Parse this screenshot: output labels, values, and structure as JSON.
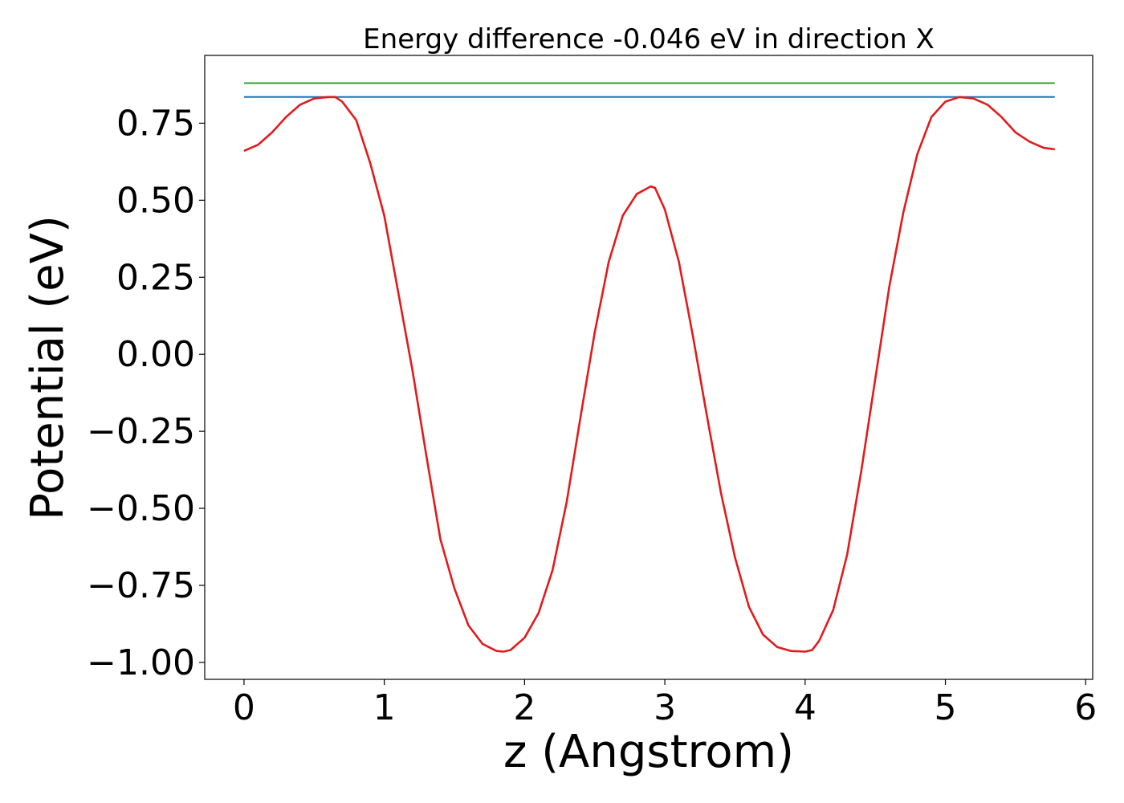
{
  "chart_data": {
    "type": "line",
    "title": "Energy difference -0.046 eV in direction X",
    "xlabel": "z (Angstrom)",
    "ylabel": "Potential (eV)",
    "xlim": [
      -0.28,
      6.05
    ],
    "ylim": [
      -1.055,
      0.97
    ],
    "grid": false,
    "xticks": [
      0,
      1,
      2,
      3,
      4,
      5,
      6
    ],
    "xtick_labels": [
      "0",
      "1",
      "2",
      "3",
      "4",
      "5",
      "6"
    ],
    "yticks": [
      0.75,
      0.5,
      0.25,
      0.0,
      -0.25,
      -0.5,
      -0.75,
      -1.0
    ],
    "ytick_labels": [
      "0.75",
      "0.50",
      "0.25",
      "0.00",
      "−0.25",
      "−0.50",
      "−0.75",
      "−1.00"
    ],
    "series": [
      {
        "color": "#2ca02c",
        "x": [
          0.0,
          5.78
        ],
        "y": [
          0.88,
          0.88
        ]
      },
      {
        "color": "#1f77b4",
        "x": [
          0.0,
          5.78
        ],
        "y": [
          0.835,
          0.835
        ]
      },
      {
        "color": "#e31a1c",
        "x": [
          0.0,
          0.1,
          0.2,
          0.3,
          0.4,
          0.5,
          0.6,
          0.65,
          0.7,
          0.8,
          0.9,
          1.0,
          1.1,
          1.2,
          1.3,
          1.4,
          1.5,
          1.6,
          1.7,
          1.8,
          1.85,
          1.9,
          2.0,
          2.1,
          2.2,
          2.3,
          2.4,
          2.5,
          2.6,
          2.7,
          2.8,
          2.9,
          2.93,
          3.0,
          3.1,
          3.2,
          3.3,
          3.4,
          3.5,
          3.6,
          3.7,
          3.8,
          3.9,
          4.0,
          4.05,
          4.1,
          4.2,
          4.3,
          4.4,
          4.5,
          4.6,
          4.7,
          4.8,
          4.9,
          5.0,
          5.1,
          5.2,
          5.3,
          5.4,
          5.5,
          5.6,
          5.7,
          5.78
        ],
        "y": [
          0.66,
          0.68,
          0.72,
          0.77,
          0.81,
          0.83,
          0.835,
          0.835,
          0.82,
          0.76,
          0.62,
          0.45,
          0.2,
          -0.05,
          -0.33,
          -0.6,
          -0.76,
          -0.88,
          -0.94,
          -0.963,
          -0.965,
          -0.96,
          -0.92,
          -0.84,
          -0.7,
          -0.48,
          -0.2,
          0.07,
          0.3,
          0.45,
          0.52,
          0.545,
          0.54,
          0.47,
          0.3,
          0.06,
          -0.2,
          -0.45,
          -0.66,
          -0.82,
          -0.91,
          -0.95,
          -0.963,
          -0.965,
          -0.96,
          -0.93,
          -0.83,
          -0.65,
          -0.38,
          -0.08,
          0.22,
          0.46,
          0.65,
          0.77,
          0.82,
          0.835,
          0.83,
          0.81,
          0.77,
          0.72,
          0.69,
          0.67,
          0.665
        ]
      }
    ]
  }
}
